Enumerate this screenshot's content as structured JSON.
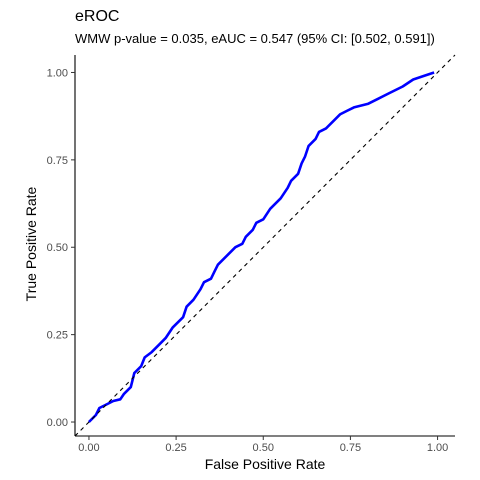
{
  "chart_data": {
    "type": "line",
    "title": "eROC",
    "subtitle": "WMW p-value = 0.035, eAUC = 0.547 (95% CI: [0.502, 0.591])",
    "xlabel": "False Positive Rate",
    "ylabel": "True Positive Rate",
    "xlim": [
      -0.04,
      1.05
    ],
    "ylim": [
      -0.04,
      1.05
    ],
    "x_ticks": [
      0,
      0.25,
      0.5,
      0.75,
      1
    ],
    "x_tick_labels": [
      "0.00",
      "0.25",
      "0.50",
      "0.75",
      "1.00"
    ],
    "y_ticks": [
      0,
      0.25,
      0.5,
      0.75,
      1
    ],
    "y_tick_labels": [
      "0.00",
      "0.25",
      "0.50",
      "0.75",
      "1.00"
    ],
    "grid": false,
    "colors": {
      "roc": "#0000ff",
      "diagonal": "#000000",
      "axis": "#000000"
    },
    "series": [
      {
        "style": "solid",
        "x": [
          0,
          0.02,
          0.03,
          0.05,
          0.07,
          0.09,
          0.1,
          0.12,
          0.13,
          0.14,
          0.15,
          0.16,
          0.18,
          0.2,
          0.22,
          0.24,
          0.27,
          0.28,
          0.3,
          0.32,
          0.33,
          0.35,
          0.36,
          0.37,
          0.38,
          0.4,
          0.42,
          0.44,
          0.45,
          0.47,
          0.48,
          0.5,
          0.52,
          0.54,
          0.55,
          0.57,
          0.58,
          0.6,
          0.61,
          0.62,
          0.63,
          0.65,
          0.66,
          0.68,
          0.7,
          0.72,
          0.74,
          0.76,
          0.8,
          0.83,
          0.86,
          0.9,
          0.93,
          0.96,
          0.99
        ],
        "y": [
          0,
          0.02,
          0.04,
          0.05,
          0.06,
          0.065,
          0.08,
          0.1,
          0.14,
          0.15,
          0.16,
          0.185,
          0.2,
          0.22,
          0.24,
          0.27,
          0.3,
          0.33,
          0.35,
          0.38,
          0.4,
          0.41,
          0.43,
          0.45,
          0.46,
          0.48,
          0.5,
          0.51,
          0.53,
          0.55,
          0.57,
          0.58,
          0.61,
          0.63,
          0.64,
          0.67,
          0.69,
          0.71,
          0.74,
          0.76,
          0.79,
          0.81,
          0.83,
          0.84,
          0.86,
          0.88,
          0.89,
          0.9,
          0.91,
          0.925,
          0.94,
          0.96,
          0.98,
          0.99,
          1.0
        ]
      },
      {
        "style": "dashed",
        "x": [
          -0.04,
          1.05
        ],
        "y": [
          -0.04,
          1.05
        ]
      }
    ]
  }
}
